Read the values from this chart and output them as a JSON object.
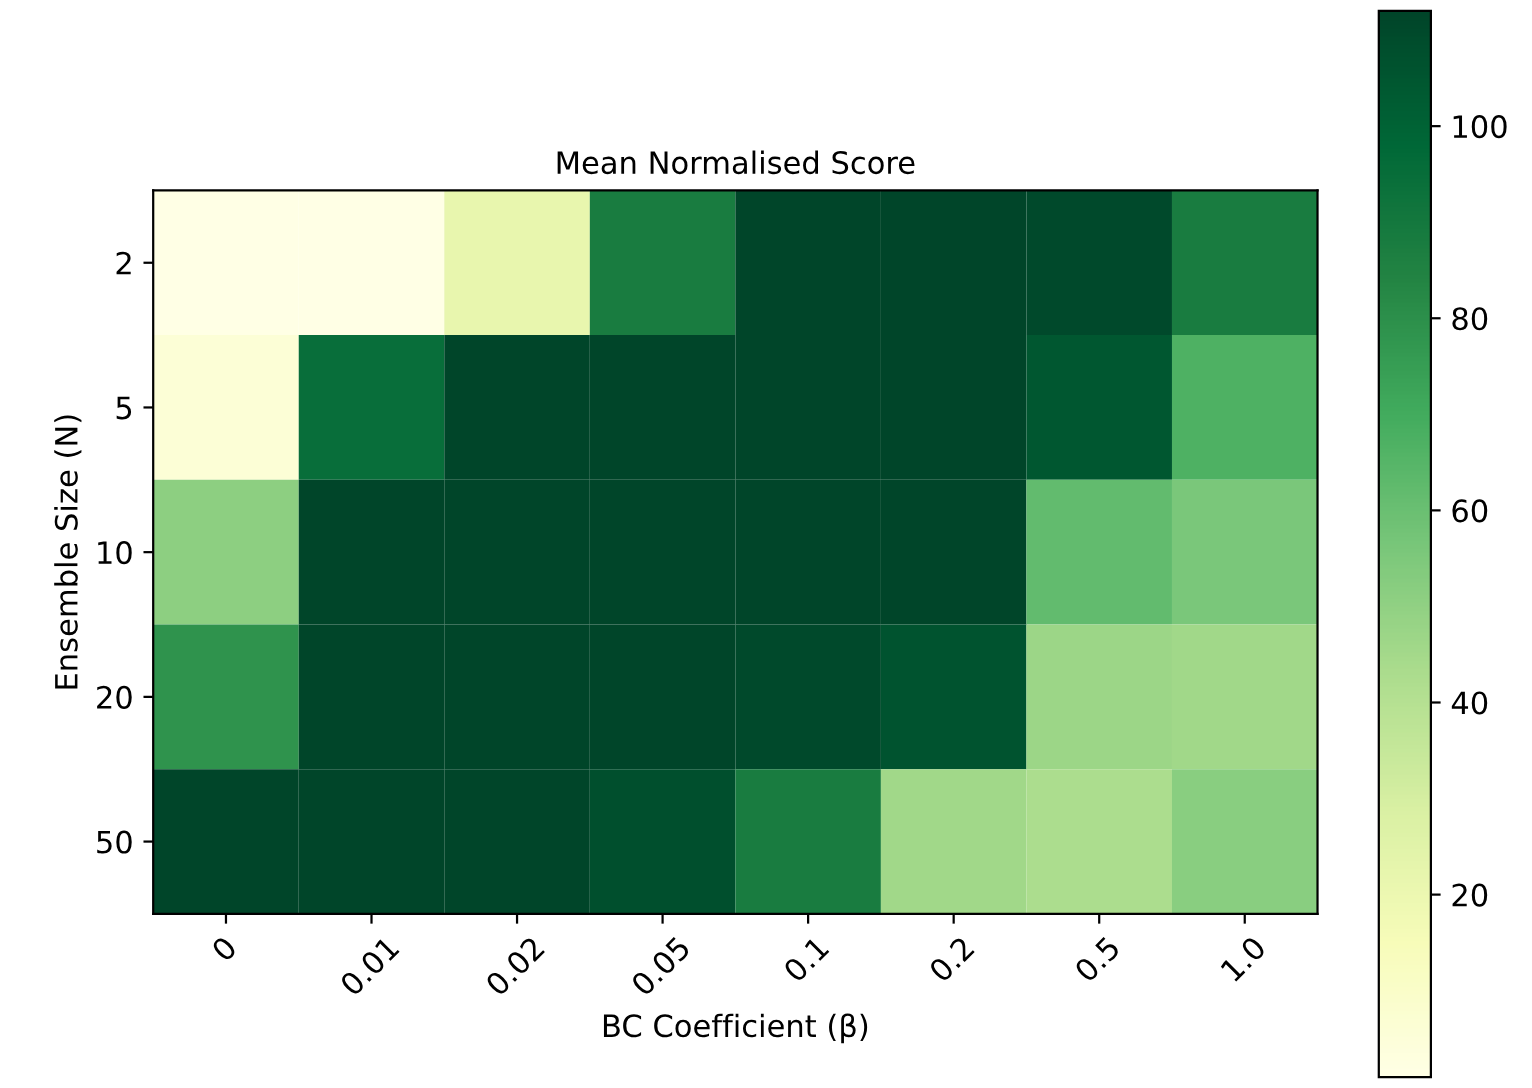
{
  "chart_data": {
    "type": "heatmap",
    "title": "Mean Normalised Score",
    "xlabel": "BC Coefficient (β)",
    "ylabel": "Ensemble Size (N)",
    "categories": [
      "0",
      "0.01",
      "0.02",
      "0.05",
      "0.1",
      "0.2",
      "0.5",
      "1.0"
    ],
    "y_categories": [
      "2",
      "5",
      "10",
      "20",
      "50"
    ],
    "cells": [
      [
        1,
        1,
        22,
        88,
        112,
        112,
        110,
        88
      ],
      [
        6,
        95,
        112,
        112,
        112,
        112,
        105,
        67
      ],
      [
        51,
        112,
        112,
        112,
        112,
        112,
        62,
        56
      ],
      [
        79,
        112,
        112,
        112,
        110,
        106,
        47,
        46
      ],
      [
        112,
        112,
        112,
        108,
        88,
        46,
        43,
        52
      ]
    ],
    "clim": [
      1,
      112
    ],
    "cticks": [
      20,
      40,
      60,
      80,
      100
    ]
  }
}
